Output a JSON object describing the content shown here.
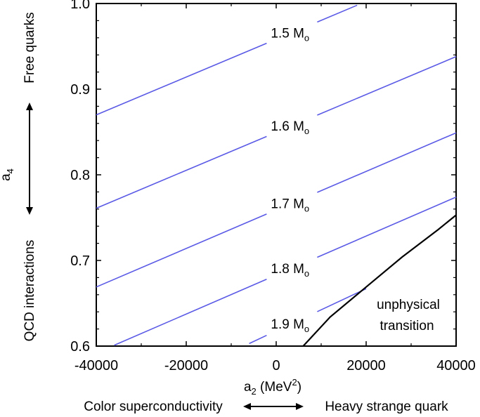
{
  "chart_data": {
    "type": "line",
    "xlabel_main": "a",
    "xlabel_sub": "2",
    "xlabel_unit_pre": " (MeV",
    "xlabel_unit_sup": "2",
    "xlabel_unit_post": ")",
    "ylabel_main": "a",
    "ylabel_sub": "4",
    "xlim": [
      -40000,
      40000
    ],
    "ylim": [
      0.6,
      1.0
    ],
    "x_ticks": [
      -40000,
      -20000,
      0,
      20000,
      40000
    ],
    "y_ticks": [
      0.6,
      0.7,
      0.8,
      0.9,
      1.0
    ],
    "x_tick_labels": [
      "-40000",
      "-20000",
      "0",
      "20000",
      "40000"
    ],
    "y_tick_labels": [
      "0.6",
      "0.7",
      "0.8",
      "0.9",
      "1.0"
    ],
    "series": [
      {
        "name": "1.5 Mo",
        "label_value": "1.5 M",
        "label_sub": "o",
        "x": [
          -40000,
          18000
        ],
        "y": [
          0.87,
          0.998
        ],
        "label_at": [
          3500,
          0.968
        ]
      },
      {
        "name": "1.6 Mo",
        "label_value": "1.6 M",
        "label_sub": "o",
        "x": [
          -40000,
          40000
        ],
        "y": [
          0.761,
          0.938
        ],
        "label_at": [
          3500,
          0.88
        ]
      },
      {
        "name": "1.7 Mo",
        "label_value": "1.7 M",
        "label_sub": "o",
        "x": [
          -40000,
          40000
        ],
        "y": [
          0.669,
          0.849
        ],
        "label_at": [
          3500,
          0.78
        ]
      },
      {
        "name": "1.8 Mo",
        "label_value": "1.8 M",
        "label_sub": "o",
        "x": [
          -36000,
          40000
        ],
        "y": [
          0.601,
          0.774
        ],
        "label_at": [
          3500,
          0.7
        ]
      },
      {
        "name": "1.9 Mo",
        "label_value": "1.9 M",
        "label_sub": "o",
        "x": [
          -6000,
          20000
        ],
        "y": [
          0.603,
          0.667
        ],
        "label_at": [
          3500,
          0.627
        ]
      }
    ],
    "boundary": {
      "name": "unphysical transition",
      "x": [
        6000,
        12000,
        20000,
        28000,
        36000,
        40000
      ],
      "y": [
        0.6,
        0.634,
        0.669,
        0.704,
        0.736,
        0.753
      ]
    },
    "annotations": {
      "unphysical_line1": "unphysical",
      "unphysical_line2": "transition",
      "left_top": "Free quarks",
      "left_bottom": "QCD interactions",
      "bottom_left": "Color superconductivity",
      "bottom_right": "Heavy strange quark"
    }
  }
}
